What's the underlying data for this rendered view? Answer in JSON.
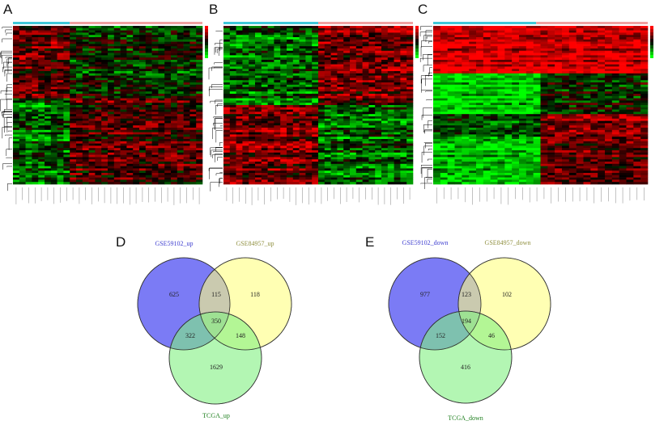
{
  "panels": {
    "a": "A",
    "b": "B",
    "c": "C",
    "d": "D",
    "e": "E"
  },
  "colors": {
    "group1": "#3ec8d8",
    "group2": "#f0a0a0",
    "high": "#ff0000",
    "low": "#00ff00",
    "mid": "#000000",
    "venn_blue": "#7b7bf5",
    "venn_yellow": "#ffff80",
    "venn_green": "#80f080"
  },
  "chart_data": [
    {
      "type": "heatmap",
      "panel": "A",
      "color_scale": [
        "green",
        "black",
        "red"
      ],
      "column_groups": [
        "cyan",
        "salmon"
      ]
    },
    {
      "type": "heatmap",
      "panel": "B",
      "color_scale": [
        "green",
        "black",
        "red"
      ],
      "column_groups": [
        "cyan",
        "salmon"
      ]
    },
    {
      "type": "heatmap",
      "panel": "C",
      "color_scale": [
        "green",
        "black",
        "red"
      ],
      "column_groups": [
        "cyan",
        "salmon"
      ]
    },
    {
      "type": "venn",
      "panel": "D",
      "sets": [
        "GSE59102_up",
        "GSE84957_up",
        "TCGA_up"
      ],
      "regions": {
        "only_1": 625,
        "1_2": 115,
        "only_2": 118,
        "1_2_3": 350,
        "1_3": 322,
        "2_3": 148,
        "only_3": 1629
      }
    },
    {
      "type": "venn",
      "panel": "E",
      "sets": [
        "GSE59102_down",
        "GSE84957_down",
        "TCGA_down"
      ],
      "regions": {
        "only_1": 977,
        "1_2": 123,
        "only_2": 102,
        "1_2_3": 194,
        "1_3": 152,
        "2_3": 46,
        "only_3": 416
      }
    }
  ]
}
